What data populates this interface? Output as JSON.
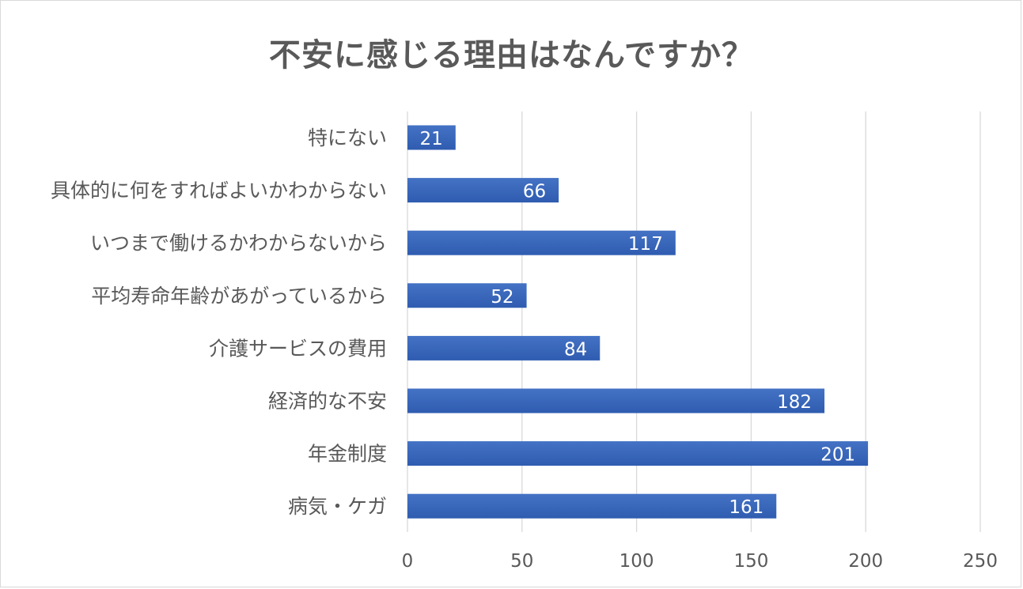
{
  "chart_data": {
    "type": "bar",
    "orientation": "horizontal",
    "title": "不安に感じる理由はなんですか？",
    "categories": [
      "特にない",
      "具体的に何をすればよいかわからない",
      "いつまで働けるかわからないから",
      "平均寿命年齢があがっているから",
      "介護サービスの費用",
      "経済的な不安",
      "年金制度",
      "病気・ケガ"
    ],
    "values": [
      21,
      66,
      117,
      52,
      84,
      182,
      201,
      161
    ],
    "xlim": [
      0,
      250
    ],
    "ticks": [
      0,
      50,
      100,
      150,
      200,
      250
    ],
    "grid": "vertical",
    "legend": "none",
    "data_labels": true,
    "colors": {
      "bar": "#4472c4",
      "bar_dark": "#2f5cb0",
      "grid": "#d9d9d9",
      "text": "#595959",
      "label_text": "#ffffff"
    }
  }
}
